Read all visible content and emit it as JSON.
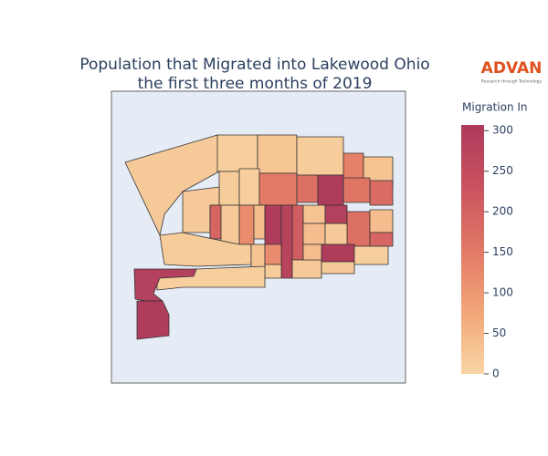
{
  "chart_data": {
    "type": "choropleth",
    "title": [
      "Population that Migrated into Lakewood Ohio",
      "the first three months of 2019"
    ],
    "logo": {
      "name": "ADVAN",
      "tagline": "Research through Technology"
    },
    "colorbar_title": "Migration In",
    "zlim": [
      0,
      307
    ],
    "zticks": [
      0,
      50,
      100,
      150,
      200,
      250,
      300
    ],
    "colorscale": [
      "#f8d5a3",
      "#f2a679",
      "#e27866",
      "#c9535f",
      "#ad3a5c"
    ],
    "values": [
      20,
      10,
      25,
      15,
      140,
      30,
      15,
      10,
      150,
      170,
      300,
      160,
      180,
      20,
      190,
      20,
      120,
      40,
      300,
      280,
      210,
      30,
      290,
      170,
      40,
      190,
      40,
      20,
      15,
      30,
      120,
      15,
      20,
      300,
      40,
      20,
      10,
      10,
      290,
      300
    ]
  }
}
